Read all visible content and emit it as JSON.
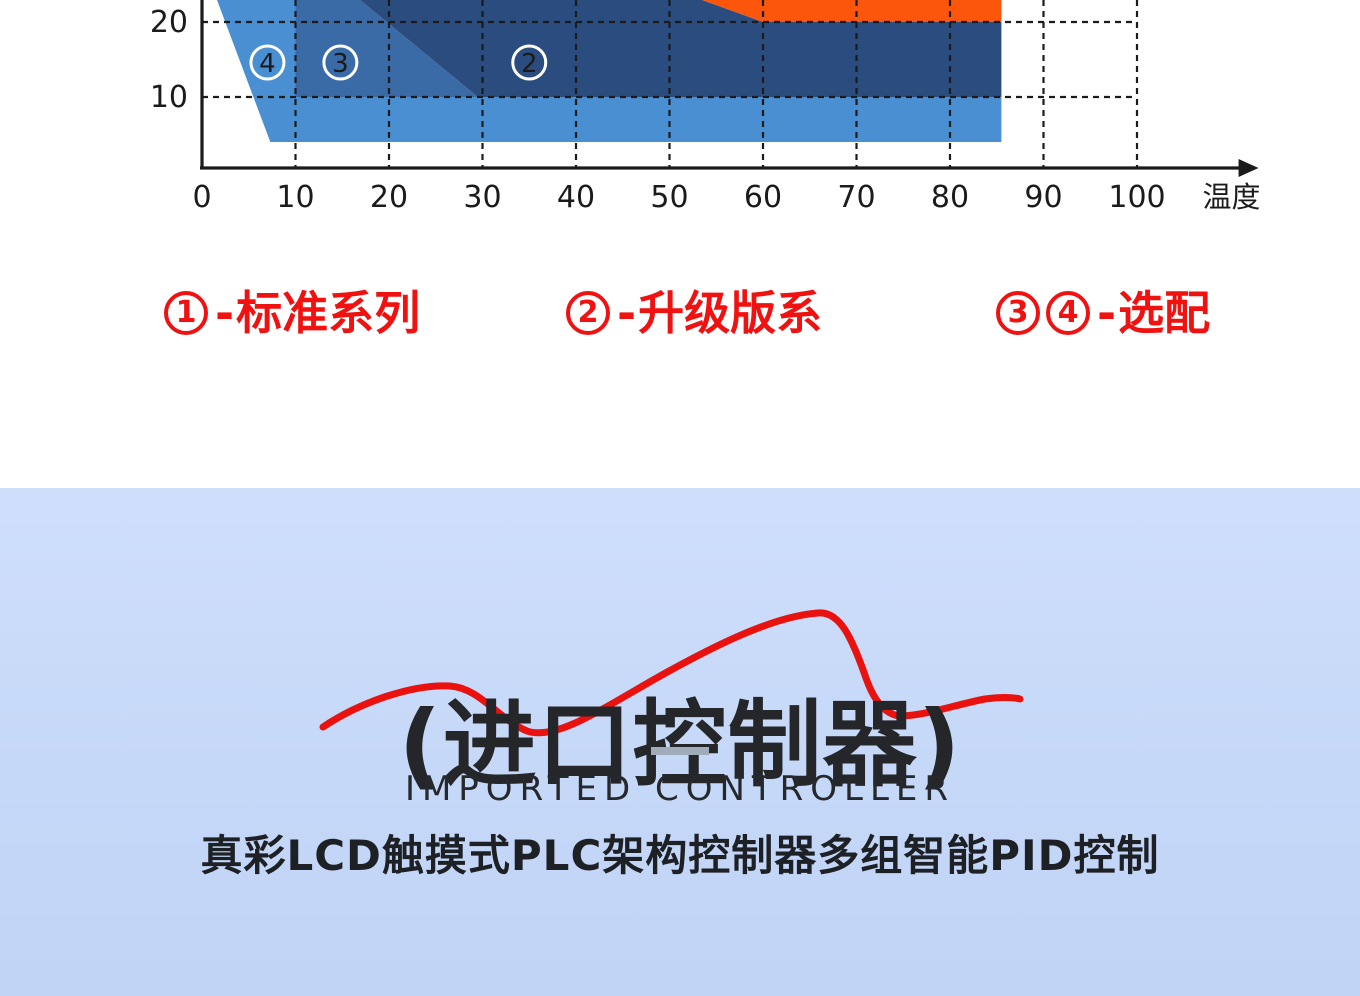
{
  "chart_data": {
    "type": "area",
    "title": "",
    "xlabel": "温度",
    "ylabel": "",
    "x_ticks": [
      0,
      10,
      20,
      30,
      40,
      50,
      60,
      70,
      80,
      90,
      100
    ],
    "x_axis_arrow_end": 113,
    "y_ticks": [
      10,
      20
    ],
    "y_visible_max": 23,
    "grid": true,
    "note_cropped_top": true,
    "regions": [
      {
        "name": "optional-zone-4",
        "color": "#4a8fd1",
        "points": [
          [
            1.6,
            23
          ],
          [
            10,
            23
          ],
          [
            10,
            10
          ],
          [
            85.5,
            10
          ],
          [
            85.5,
            4
          ],
          [
            7.3,
            4
          ]
        ]
      },
      {
        "name": "optional-zone-3",
        "color": "#3a6ba7",
        "points": [
          [
            10,
            23
          ],
          [
            16.9,
            23
          ],
          [
            29.5,
            10
          ],
          [
            10,
            10
          ]
        ]
      },
      {
        "name": "upgrade-zone-2",
        "color": "#2b4c7f",
        "points": [
          [
            16.9,
            23
          ],
          [
            53.5,
            23
          ],
          [
            60,
            20
          ],
          [
            85.5,
            20
          ],
          [
            85.5,
            10
          ],
          [
            29.5,
            10
          ]
        ]
      },
      {
        "name": "standard-zone-1",
        "color": "#fc560d",
        "points": [
          [
            53.5,
            23
          ],
          [
            85.5,
            23
          ],
          [
            85.5,
            20
          ],
          [
            60,
            20
          ]
        ]
      }
    ],
    "markers": [
      {
        "digit": "4",
        "t": 7,
        "h": 14.6
      },
      {
        "digit": "3",
        "t": 14.8,
        "h": 14.6
      },
      {
        "digit": "2",
        "t": 35,
        "h": 14.6
      }
    ],
    "axis_color": "#1b1b1b",
    "grid_color": "#1b1b1b"
  },
  "legend": {
    "items": [
      {
        "badges": [
          "1"
        ],
        "dash": "-",
        "label": "标准系列"
      },
      {
        "badges": [
          "2"
        ],
        "dash": "-",
        "label": "升级版系"
      },
      {
        "badges": [
          "3",
          "4"
        ],
        "dash": "-",
        "label": "选配"
      }
    ],
    "color": "#f01111"
  },
  "controller": {
    "heading": "(进口控制器)",
    "subheading_en": "IMPORTED CONTROLLER",
    "subheading_cn": "真彩LCD触摸式PLC架构控制器多组智能PID控制",
    "curve_color": "#e9120e",
    "bg": "#c7d9f8"
  }
}
